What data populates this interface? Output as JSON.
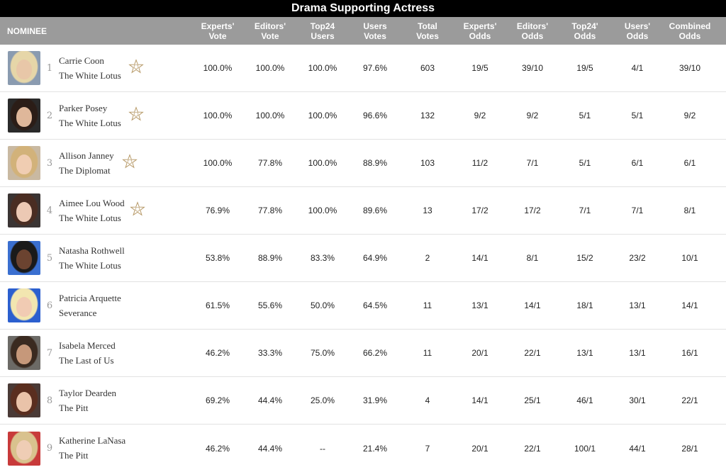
{
  "title": "Drama Supporting Actress",
  "columns": {
    "nominee": "NOMINEE",
    "c1": "Experts'\nVote",
    "c2": "Editors'\nVote",
    "c3": "Top24\nUsers",
    "c4": "Users\nVotes",
    "c5": "Total\nVotes",
    "c6": "Experts'\nOdds",
    "c7": "Editors'\nOdds",
    "c8": "Top24'\nOdds",
    "c9": "Users'\nOdds",
    "c10": "Combined\nOdds"
  },
  "rows": [
    {
      "rank": "1",
      "name": "Carrie Coon",
      "show": "The White Lotus",
      "star": true,
      "star_icon": "gold-derby-star-icon",
      "photo": {
        "bg": "#8a9bb0",
        "hair": "#e6d6a8",
        "skin": "#e8c7a8"
      },
      "v": [
        "100.0%",
        "100.0%",
        "100.0%",
        "97.6%",
        "603",
        "19/5",
        "39/10",
        "19/5",
        "4/1",
        "39/10"
      ]
    },
    {
      "rank": "2",
      "name": "Parker Posey",
      "show": "The White Lotus",
      "star": true,
      "star_icon": "gold-derby-star-icon",
      "photo": {
        "bg": "#2a2a2a",
        "hair": "#2b1d17",
        "skin": "#dfb79a"
      },
      "v": [
        "100.0%",
        "100.0%",
        "100.0%",
        "96.6%",
        "132",
        "9/2",
        "9/2",
        "5/1",
        "5/1",
        "9/2"
      ]
    },
    {
      "rank": "3",
      "name": "Allison Janney",
      "show": "The Diplomat",
      "star": true,
      "star_icon": "gold-derby-star-icon",
      "photo": {
        "bg": "#c9b9a2",
        "hair": "#d2b27a",
        "skin": "#f0cdb2"
      },
      "v": [
        "100.0%",
        "77.8%",
        "100.0%",
        "88.9%",
        "103",
        "11/2",
        "7/1",
        "5/1",
        "6/1",
        "6/1"
      ]
    },
    {
      "rank": "4",
      "name": "Aimee Lou Wood",
      "show": "The White Lotus",
      "star": true,
      "star_icon": "gold-derby-star-icon",
      "photo": {
        "bg": "#3a3433",
        "hair": "#4a2d22",
        "skin": "#ecc9b4"
      },
      "v": [
        "76.9%",
        "77.8%",
        "100.0%",
        "89.6%",
        "13",
        "17/2",
        "17/2",
        "7/1",
        "7/1",
        "8/1"
      ]
    },
    {
      "rank": "5",
      "name": "Natasha Rothwell",
      "show": "The White Lotus",
      "star": false,
      "star_icon": "",
      "photo": {
        "bg": "#3a6fd0",
        "hair": "#1a1a1a",
        "skin": "#6b4330"
      },
      "v": [
        "53.8%",
        "88.9%",
        "83.3%",
        "64.9%",
        "2",
        "14/1",
        "8/1",
        "15/2",
        "23/2",
        "10/1"
      ]
    },
    {
      "rank": "6",
      "name": "Patricia Arquette",
      "show": "Severance",
      "star": false,
      "star_icon": "",
      "photo": {
        "bg": "#2b5fcf",
        "hair": "#f2e6b0",
        "skin": "#f1cbb3"
      },
      "v": [
        "61.5%",
        "55.6%",
        "50.0%",
        "64.5%",
        "11",
        "13/1",
        "14/1",
        "18/1",
        "13/1",
        "14/1"
      ]
    },
    {
      "rank": "7",
      "name": "Isabela Merced",
      "show": "The Last of Us",
      "star": false,
      "star_icon": "",
      "photo": {
        "bg": "#6c6a66",
        "hair": "#3a2a20",
        "skin": "#c6987a"
      },
      "v": [
        "46.2%",
        "33.3%",
        "75.0%",
        "66.2%",
        "11",
        "20/1",
        "22/1",
        "13/1",
        "13/1",
        "16/1"
      ]
    },
    {
      "rank": "8",
      "name": "Taylor Dearden",
      "show": "The Pitt",
      "star": false,
      "star_icon": "",
      "photo": {
        "bg": "#4a3a36",
        "hair": "#5a2e1f",
        "skin": "#e9c3a9"
      },
      "v": [
        "69.2%",
        "44.4%",
        "25.0%",
        "31.9%",
        "4",
        "14/1",
        "25/1",
        "46/1",
        "30/1",
        "22/1"
      ]
    },
    {
      "rank": "9",
      "name": "Katherine LaNasa",
      "show": "The Pitt",
      "star": false,
      "star_icon": "",
      "photo": {
        "bg": "#c83a3a",
        "hair": "#d9c28e",
        "skin": "#efcdb5"
      },
      "v": [
        "46.2%",
        "44.4%",
        "--",
        "21.4%",
        "7",
        "20/1",
        "22/1",
        "100/1",
        "44/1",
        "28/1"
      ]
    }
  ]
}
